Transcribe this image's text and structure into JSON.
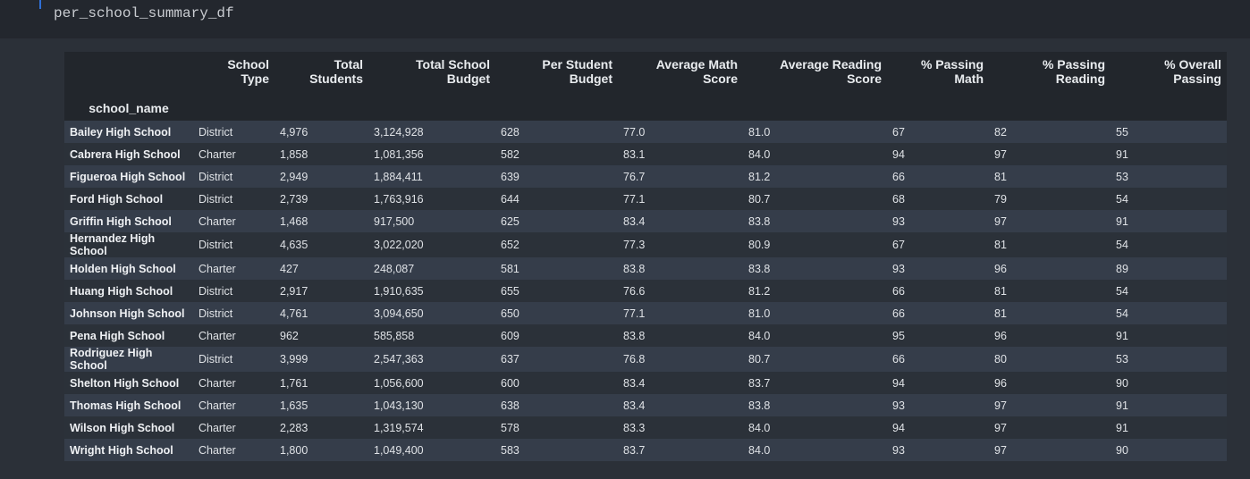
{
  "code_cell": {
    "code": "per_school_summary_df"
  },
  "table": {
    "index_name": "school_name",
    "columns": [
      "School Type",
      "Total Students",
      "Total School Budget",
      "Per Student Budget",
      "Average Math Score",
      "Average Reading Score",
      "% Passing Math",
      "% Passing Reading",
      "% Overall Passing"
    ],
    "rows": [
      {
        "school": "Bailey High School",
        "cells": [
          "District",
          "4,976",
          "3,124,928",
          "628",
          "77.0",
          "81.0",
          "67",
          "82",
          "55"
        ]
      },
      {
        "school": "Cabrera High School",
        "cells": [
          "Charter",
          "1,858",
          "1,081,356",
          "582",
          "83.1",
          "84.0",
          "94",
          "97",
          "91"
        ]
      },
      {
        "school": "Figueroa High School",
        "cells": [
          "District",
          "2,949",
          "1,884,411",
          "639",
          "76.7",
          "81.2",
          "66",
          "81",
          "53"
        ]
      },
      {
        "school": "Ford High School",
        "cells": [
          "District",
          "2,739",
          "1,763,916",
          "644",
          "77.1",
          "80.7",
          "68",
          "79",
          "54"
        ]
      },
      {
        "school": "Griffin High School",
        "cells": [
          "Charter",
          "1,468",
          "917,500",
          "625",
          "83.4",
          "83.8",
          "93",
          "97",
          "91"
        ]
      },
      {
        "school": "Hernandez High School",
        "cells": [
          "District",
          "4,635",
          "3,022,020",
          "652",
          "77.3",
          "80.9",
          "67",
          "81",
          "54"
        ]
      },
      {
        "school": "Holden High School",
        "cells": [
          "Charter",
          "427",
          "248,087",
          "581",
          "83.8",
          "83.8",
          "93",
          "96",
          "89"
        ]
      },
      {
        "school": "Huang High School",
        "cells": [
          "District",
          "2,917",
          "1,910,635",
          "655",
          "76.6",
          "81.2",
          "66",
          "81",
          "54"
        ]
      },
      {
        "school": "Johnson High School",
        "cells": [
          "District",
          "4,761",
          "3,094,650",
          "650",
          "77.1",
          "81.0",
          "66",
          "81",
          "54"
        ]
      },
      {
        "school": "Pena High School",
        "cells": [
          "Charter",
          "962",
          "585,858",
          "609",
          "83.8",
          "84.0",
          "95",
          "96",
          "91"
        ]
      },
      {
        "school": "Rodriguez High School",
        "cells": [
          "District",
          "3,999",
          "2,547,363",
          "637",
          "76.8",
          "80.7",
          "66",
          "80",
          "53"
        ]
      },
      {
        "school": "Shelton High School",
        "cells": [
          "Charter",
          "1,761",
          "1,056,600",
          "600",
          "83.4",
          "83.7",
          "94",
          "96",
          "90"
        ]
      },
      {
        "school": "Thomas High School",
        "cells": [
          "Charter",
          "1,635",
          "1,043,130",
          "638",
          "83.4",
          "83.8",
          "93",
          "97",
          "91"
        ]
      },
      {
        "school": "Wilson High School",
        "cells": [
          "Charter",
          "2,283",
          "1,319,574",
          "578",
          "83.3",
          "84.0",
          "94",
          "97",
          "91"
        ]
      },
      {
        "school": "Wright High School",
        "cells": [
          "Charter",
          "1,800",
          "1,049,400",
          "583",
          "83.7",
          "84.0",
          "93",
          "97",
          "90"
        ]
      }
    ]
  }
}
